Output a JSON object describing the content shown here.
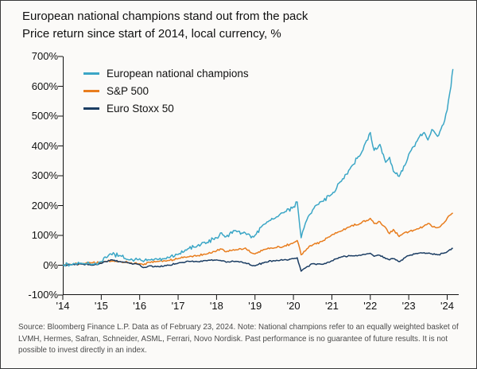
{
  "footer": {
    "source_text": "Source: Bloomberg Finance L.P. Data as of February 23, 2024. Note: National champions refer to an equally weighted basket of LVMH, Hermes, Safran, Schneider, ASML, Ferrari, Novo Nordisk. Past performance is no guarantee of future results. It is not possible to invest directly in an index."
  },
  "chart_data": {
    "type": "line",
    "title": "European national champions stand out from the pack",
    "subtitle": "Price return since start of 2014, local currency, %",
    "xlabel": "",
    "ylabel": "Price return since start of 2014, local currency, %",
    "xlim": [
      2014,
      2024.3
    ],
    "ylim": [
      -100,
      700
    ],
    "grid": false,
    "legend_position": "top-left-inside",
    "axis_color": "#111111",
    "y_ticks": [
      {
        "value": 700,
        "label": "700%"
      },
      {
        "value": 600,
        "label": "600%"
      },
      {
        "value": 500,
        "label": "500%"
      },
      {
        "value": 400,
        "label": "400%"
      },
      {
        "value": 300,
        "label": "300%"
      },
      {
        "value": 200,
        "label": "200%"
      },
      {
        "value": 100,
        "label": "100%"
      },
      {
        "value": 0,
        "label": "0%"
      },
      {
        "value": -100,
        "label": "-100%"
      }
    ],
    "x_ticks": [
      {
        "value": 2014,
        "label": "'14"
      },
      {
        "value": 2015,
        "label": "'15"
      },
      {
        "value": 2016,
        "label": "'16"
      },
      {
        "value": 2017,
        "label": "'17"
      },
      {
        "value": 2018,
        "label": "'18"
      },
      {
        "value": 2019,
        "label": "'19"
      },
      {
        "value": 2020,
        "label": "'20"
      },
      {
        "value": 2021,
        "label": "'21"
      },
      {
        "value": 2022,
        "label": "'22"
      },
      {
        "value": 2023,
        "label": "'23"
      },
      {
        "value": 2024,
        "label": "'24"
      }
    ],
    "x": [
      2014.0,
      2014.25,
      2014.5,
      2014.75,
      2015.0,
      2015.1,
      2015.25,
      2015.5,
      2015.75,
      2016.0,
      2016.1,
      2016.25,
      2016.5,
      2016.75,
      2017.0,
      2017.25,
      2017.5,
      2017.75,
      2018.0,
      2018.1,
      2018.25,
      2018.5,
      2018.75,
      2018.9,
      2019.0,
      2019.25,
      2019.5,
      2019.75,
      2020.0,
      2020.1,
      2020.2,
      2020.35,
      2020.5,
      2020.75,
      2021.0,
      2021.25,
      2021.5,
      2021.75,
      2021.9,
      2022.0,
      2022.1,
      2022.25,
      2022.4,
      2022.5,
      2022.6,
      2022.75,
      2022.9,
      2023.0,
      2023.25,
      2023.4,
      2023.5,
      2023.6,
      2023.75,
      2023.9,
      2024.0,
      2024.1,
      2024.15
    ],
    "series": [
      {
        "name": "European national champions",
        "color": "#3ba6c6",
        "values": [
          0,
          3,
          6,
          2,
          12,
          28,
          38,
          32,
          18,
          22,
          12,
          18,
          20,
          26,
          36,
          55,
          65,
          76,
          92,
          108,
          96,
          116,
          108,
          92,
          100,
          138,
          156,
          176,
          196,
          212,
          92,
          152,
          186,
          214,
          238,
          282,
          330,
          372,
          418,
          445,
          385,
          405,
          345,
          362,
          315,
          298,
          335,
          372,
          425,
          445,
          420,
          455,
          432,
          472,
          520,
          600,
          658
        ]
      },
      {
        "name": "S&P 500",
        "color": "#e87d1e",
        "values": [
          0,
          3,
          6,
          8,
          11,
          13,
          14,
          12,
          8,
          5,
          1,
          10,
          13,
          16,
          22,
          28,
          32,
          38,
          48,
          55,
          45,
          52,
          58,
          42,
          38,
          53,
          58,
          63,
          75,
          83,
          35,
          55,
          68,
          80,
          102,
          115,
          132,
          140,
          150,
          157,
          140,
          146,
          126,
          106,
          120,
          96,
          110,
          112,
          122,
          132,
          140,
          130,
          126,
          140,
          158,
          170,
          175
        ]
      },
      {
        "name": "Euro Stoxx 50",
        "color": "#1b3d63",
        "values": [
          0,
          2,
          4,
          0,
          6,
          12,
          18,
          12,
          6,
          2,
          -8,
          -2,
          -5,
          0,
          7,
          14,
          12,
          15,
          18,
          16,
          10,
          13,
          8,
          0,
          -2,
          10,
          15,
          18,
          22,
          25,
          -20,
          -5,
          5,
          3,
          15,
          28,
          32,
          33,
          38,
          40,
          30,
          33,
          22,
          18,
          22,
          12,
          25,
          32,
          40,
          42,
          40,
          38,
          35,
          40,
          45,
          52,
          56
        ]
      }
    ]
  }
}
